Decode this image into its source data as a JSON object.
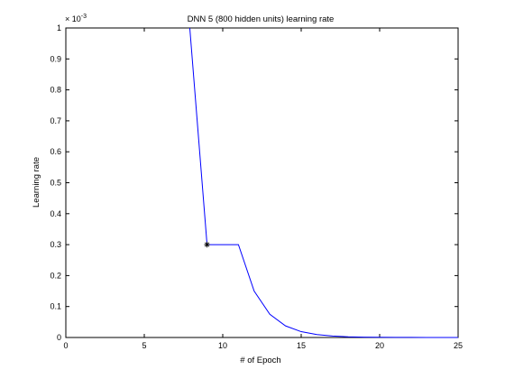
{
  "chart_data": {
    "type": "line",
    "title": "DNN 5 (800 hidden units) learning rate",
    "xlabel": "# of Epoch",
    "ylabel": "Learning rate",
    "y_scale_multiplier": "× 10",
    "y_scale_exponent": "-3",
    "xlim": [
      0,
      25
    ],
    "ylim": [
      0,
      1
    ],
    "x_ticks": [
      0,
      5,
      10,
      15,
      20,
      25
    ],
    "y_ticks": [
      0,
      0.1,
      0.2,
      0.3,
      0.4,
      0.5,
      0.6,
      0.7,
      0.8,
      0.9,
      1
    ],
    "grid": false,
    "line_color": "#0000ff",
    "marker_color": "#000000",
    "series": [
      {
        "x": [
          7.9,
          9,
          10,
          11,
          12,
          13,
          14,
          15,
          16,
          17,
          18,
          19,
          20,
          21,
          22,
          23,
          24,
          25
        ],
        "values": [
          1.0,
          0.3,
          0.3,
          0.3,
          0.15,
          0.075,
          0.0375,
          0.0188,
          0.0094,
          0.0047,
          0.0023,
          0.0012,
          0.0006,
          0.0003,
          0.0002,
          0.0001,
          0.0,
          0.0
        ]
      }
    ],
    "marker": {
      "x": 9,
      "y": 0.3,
      "symbol": "*"
    }
  }
}
